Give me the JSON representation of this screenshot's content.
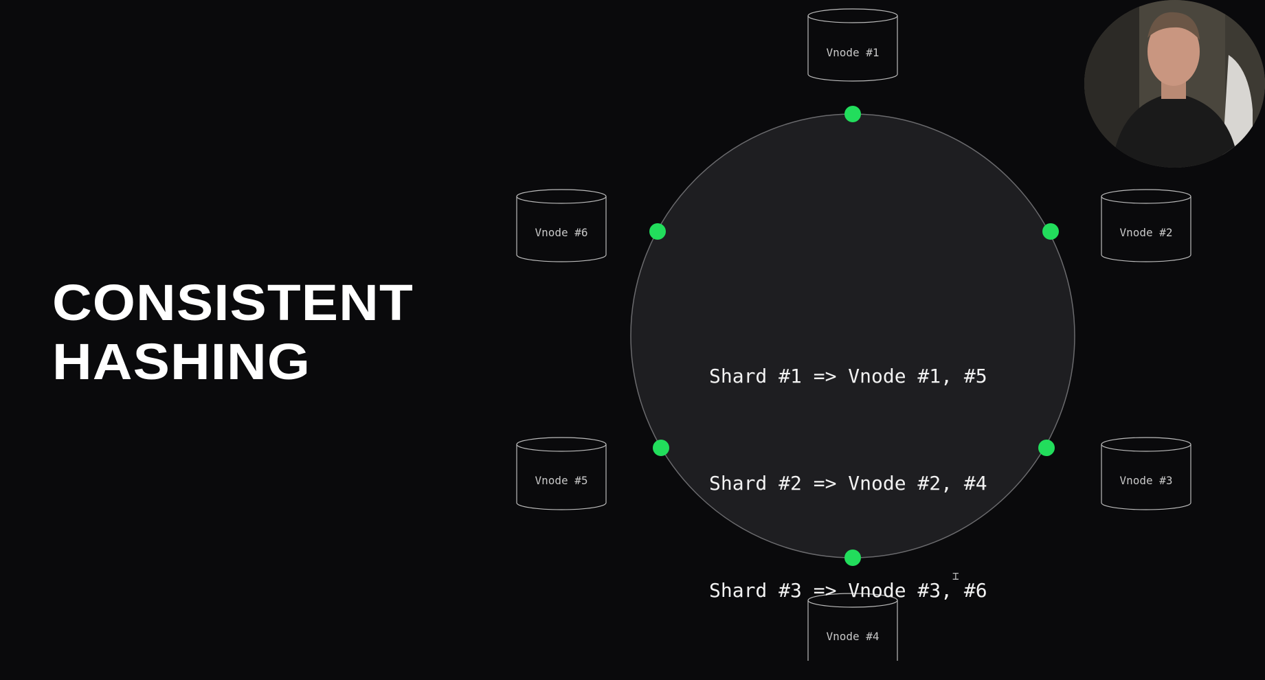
{
  "slide": {
    "title_line1": "CONSISTENT",
    "title_line2": "HASHING"
  },
  "ring": {
    "mappings": [
      "Shard #1 => Vnode #1, #5",
      "Shard #2 => Vnode #2, #4",
      "Shard #3 => Vnode #3, #6"
    ]
  },
  "vnodes": [
    "Vnode #1",
    "Vnode #2",
    "Vnode #3",
    "Vnode #4",
    "Vnode #5",
    "Vnode #6"
  ],
  "colors": {
    "background": "#0a0a0c",
    "ring_fill": "#1e1e21",
    "ring_stroke": "#6b6b6e",
    "node_dot": "#22dd5c",
    "title": "#ffffff"
  },
  "icons": {
    "cursor": "text-cursor-icon"
  }
}
